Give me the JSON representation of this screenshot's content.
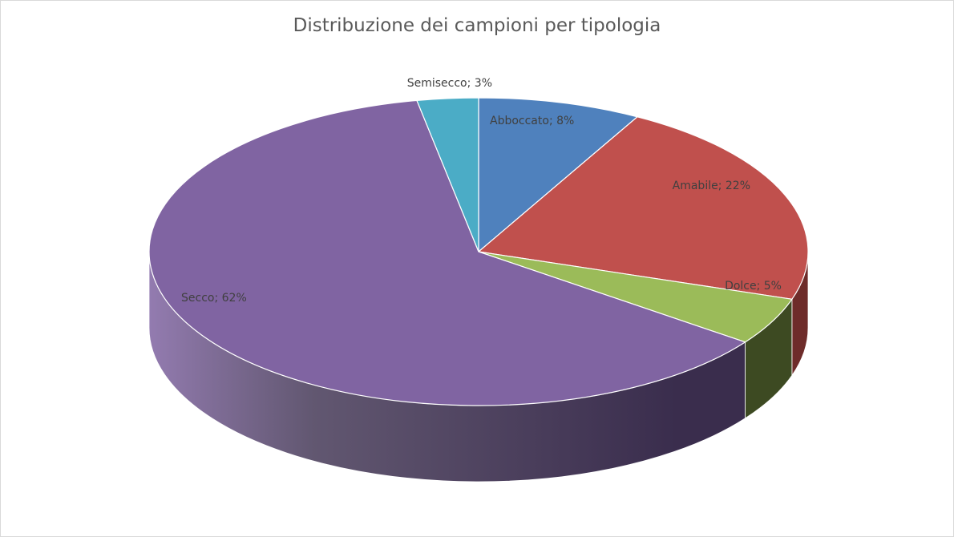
{
  "chart_data": {
    "type": "pie",
    "style": "3d",
    "title": "Distribuzione dei campioni per tipologia",
    "categories": [
      "Abboccato",
      "Amabile",
      "Dolce",
      "Secco",
      "Semisecco"
    ],
    "values": [
      8,
      22,
      5,
      62,
      3
    ],
    "unit": "%",
    "labels": [
      "Abboccato; 8%",
      "Amabile; 22%",
      "Dolce; 5%",
      "Secco; 62%",
      "Semisecco; 3%"
    ],
    "colors": [
      "#4f81bd",
      "#c0504d",
      "#9bbb59",
      "#8064a2",
      "#4bacc6"
    ],
    "side_colors": [
      "#2c4a70",
      "#6e2c2a",
      "#3d4a22",
      "#3a2d4d",
      "#2a6070"
    ],
    "legend": "none"
  }
}
